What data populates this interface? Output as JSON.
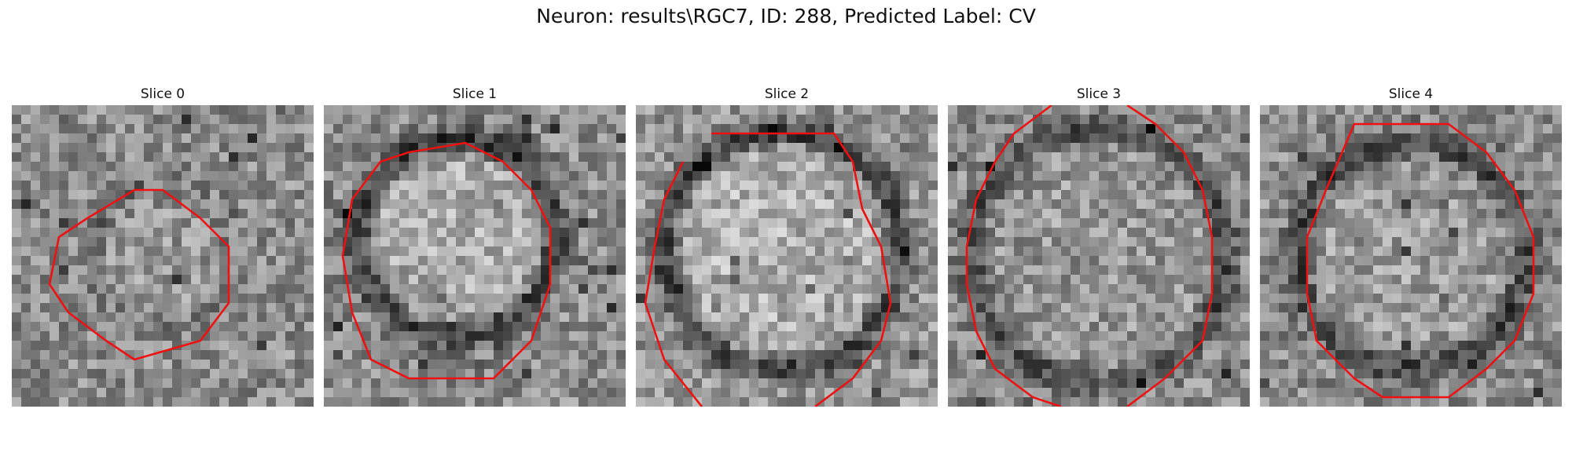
{
  "figure": {
    "title": "Neuron: results\\RGC7, ID: 288, Predicted Label: CV",
    "contour_color": "#ee1111"
  },
  "panels": [
    {
      "title": "Slice 0"
    },
    {
      "title": "Slice 1"
    },
    {
      "title": "Slice 2"
    },
    {
      "title": "Slice 3"
    },
    {
      "title": "Slice 4"
    }
  ]
}
